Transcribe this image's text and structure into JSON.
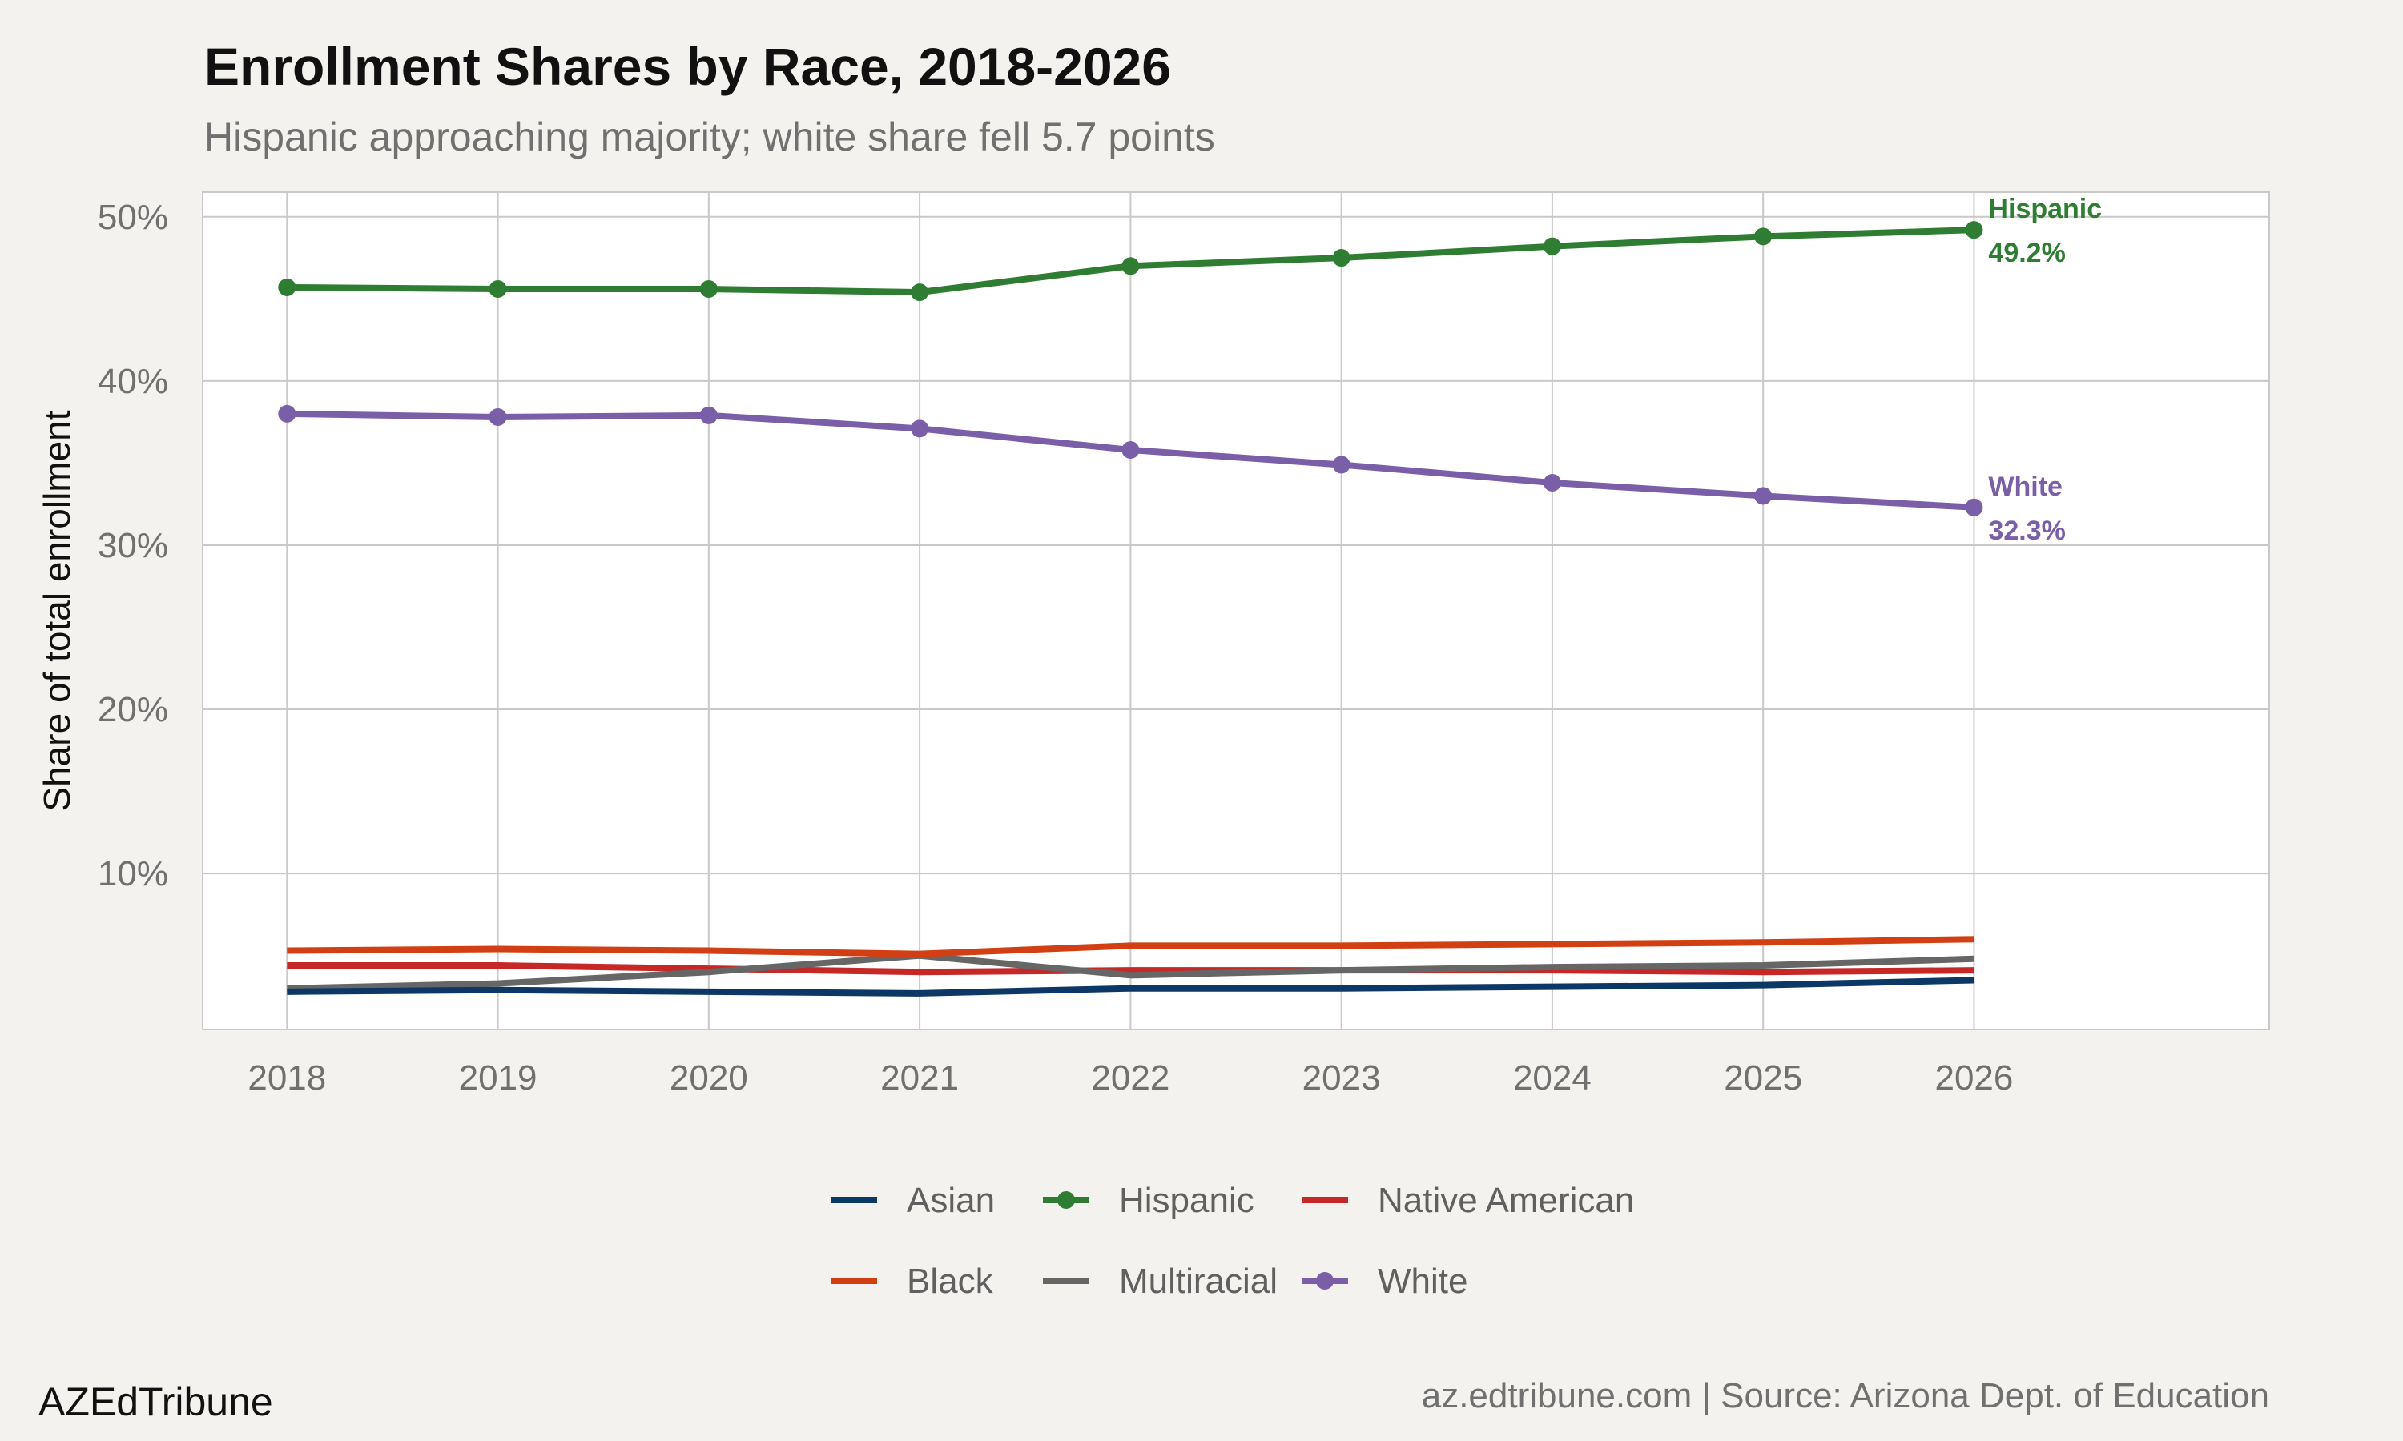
{
  "chart_data": {
    "type": "line",
    "title": "Enrollment Shares by Race, 2018-2026",
    "subtitle": "Hispanic approaching majority; white share fell 5.7 points",
    "xlabel": "",
    "ylabel": "Share of total enrollment",
    "x": [
      2018,
      2019,
      2020,
      2021,
      2022,
      2023,
      2024,
      2025,
      2026
    ],
    "x_tick_labels": [
      "2018",
      "2019",
      "2020",
      "2021",
      "2022",
      "2023",
      "2024",
      "2025",
      "2026"
    ],
    "xlim": [
      2017.6,
      2027.4
    ],
    "ylim": [
      0.5,
      51.5
    ],
    "y_ticks": [
      10,
      20,
      30,
      40,
      50
    ],
    "y_tick_labels": [
      "10%",
      "20%",
      "30%",
      "40%",
      "50%"
    ],
    "grid": true,
    "legend_position": "bottom",
    "series": [
      {
        "name": "Asian",
        "color": "#0c3866",
        "markers": false,
        "values": [
          2.8,
          2.9,
          2.8,
          2.7,
          3.0,
          3.0,
          3.1,
          3.2,
          3.5
        ]
      },
      {
        "name": "Black",
        "color": "#d13f12",
        "markers": false,
        "values": [
          5.3,
          5.4,
          5.3,
          5.1,
          5.6,
          5.6,
          5.7,
          5.8,
          6.0
        ]
      },
      {
        "name": "Hispanic",
        "color": "#2e7d32",
        "markers": true,
        "values": [
          45.7,
          45.6,
          45.6,
          45.4,
          47.0,
          47.5,
          48.2,
          48.8,
          49.2
        ],
        "end_label": {
          "name": "Hispanic",
          "value": "49.2%"
        }
      },
      {
        "name": "Multiracial",
        "color": "#666666",
        "markers": false,
        "values": [
          3.0,
          3.3,
          4.0,
          5.0,
          3.8,
          4.1,
          4.3,
          4.4,
          4.8
        ]
      },
      {
        "name": "Native American",
        "color": "#c62828",
        "markers": false,
        "values": [
          4.4,
          4.4,
          4.2,
          4.0,
          4.1,
          4.1,
          4.1,
          4.0,
          4.1
        ]
      },
      {
        "name": "White",
        "color": "#7b5ea8",
        "markers": true,
        "values": [
          38.0,
          37.8,
          37.9,
          37.1,
          35.8,
          34.9,
          33.8,
          33.0,
          32.3
        ],
        "end_label": {
          "name": "White",
          "value": "32.3%"
        }
      }
    ]
  },
  "footer": {
    "brand": "AZEdTribune",
    "source": "az.edtribune.com | Source: Arizona Dept. of Education"
  }
}
